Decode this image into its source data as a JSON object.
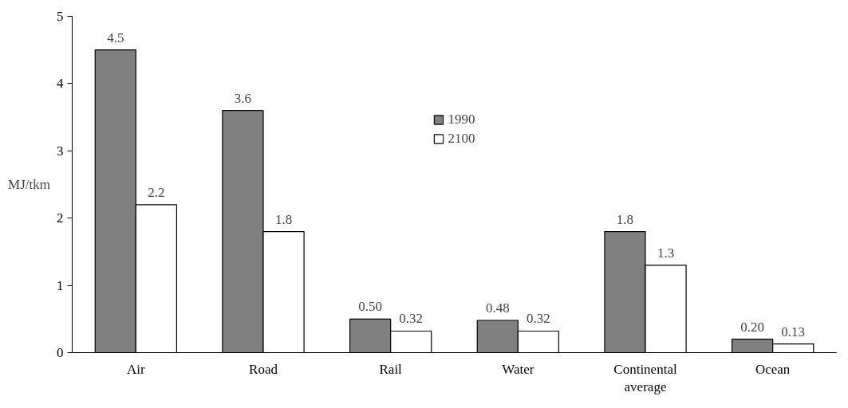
{
  "chart_data": {
    "type": "bar",
    "ylabel": "MJ/tkm",
    "categories": [
      "Air",
      "Road",
      "Rail",
      "Water",
      "Continental average",
      "Ocean"
    ],
    "series": [
      {
        "name": "1990",
        "color": "#808080",
        "values": [
          4.5,
          3.6,
          0.5,
          0.48,
          1.8,
          0.2
        ],
        "value_labels": [
          "4.5",
          "3.6",
          "0.50",
          "0.48",
          "1.8",
          "0.20"
        ]
      },
      {
        "name": "2100",
        "color": "#ffffff",
        "values": [
          2.2,
          1.8,
          0.32,
          0.32,
          1.3,
          0.13
        ],
        "value_labels": [
          "2.2",
          "1.8",
          "0.32",
          "0.32",
          "1.3",
          "0.13"
        ]
      }
    ],
    "ylim": [
      0,
      5
    ],
    "yticks": [
      0,
      1,
      2,
      3,
      4,
      5
    ],
    "grid": false,
    "legend": "top center"
  }
}
